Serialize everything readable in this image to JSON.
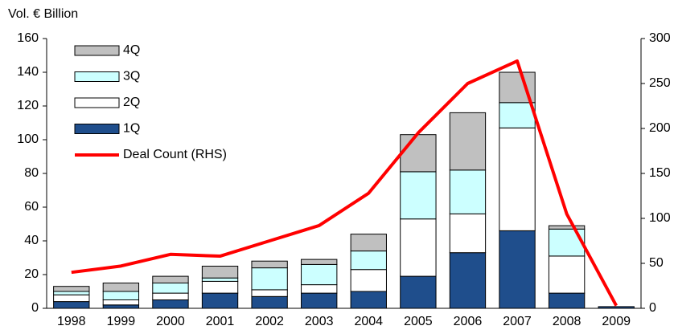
{
  "chart_data": {
    "type": "bar",
    "stacked": true,
    "y_label": "Vol. € Billion",
    "categories": [
      "1998",
      "1999",
      "2000",
      "2001",
      "2002",
      "2003",
      "2004",
      "2005",
      "2006",
      "2007",
      "2008",
      "2009"
    ],
    "series": [
      {
        "name": "1Q",
        "color": "#1f4e8c",
        "values": [
          4,
          2,
          5,
          9,
          7,
          9,
          10,
          19,
          33,
          46,
          9,
          1
        ]
      },
      {
        "name": "2Q",
        "color": "#ffffff",
        "values": [
          4,
          3,
          4,
          7,
          4,
          5,
          13,
          34,
          23,
          61,
          22,
          0
        ]
      },
      {
        "name": "3Q",
        "color": "#ccffff",
        "values": [
          2,
          5,
          6,
          2,
          13,
          12,
          11,
          28,
          26,
          15,
          16,
          0
        ]
      },
      {
        "name": "4Q",
        "color": "#c0c0c0",
        "values": [
          3,
          5,
          4,
          7,
          4,
          3,
          10,
          22,
          34,
          18,
          2,
          0
        ]
      },
      {
        "name": "Deal Count (RHS)",
        "color": "#ff0000",
        "type": "line",
        "axis": "y2",
        "values": [
          40,
          47,
          60,
          58,
          75,
          92,
          128,
          195,
          250,
          275,
          105,
          3
        ]
      }
    ],
    "ylim": [
      0,
      160
    ],
    "yticks": [
      0,
      20,
      40,
      60,
      80,
      100,
      120,
      140,
      160
    ],
    "y2lim": [
      0,
      300
    ],
    "y2ticks": [
      0,
      50,
      100,
      150,
      200,
      250,
      300
    ],
    "legend": "upper left",
    "grid": false
  }
}
